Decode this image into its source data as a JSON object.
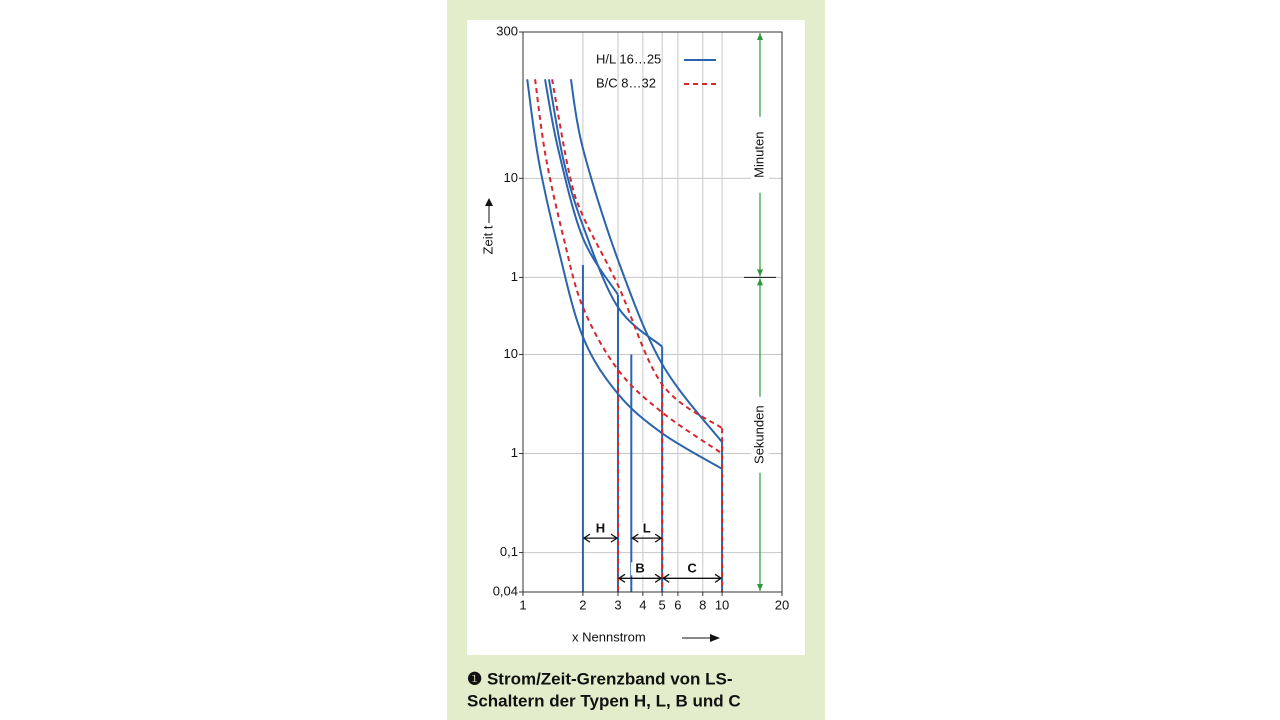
{
  "chart_data": {
    "type": "line",
    "x_label": "x Nennstrom",
    "y_label": "Zeit t",
    "xlim": [
      1,
      20
    ],
    "xticks": [
      1,
      2,
      3,
      4,
      5,
      6,
      8,
      10,
      20
    ],
    "ylim": [
      0.04,
      18000
    ],
    "yticks": [
      {
        "value": 18000,
        "label": "300"
      },
      {
        "value": 600,
        "label": "10"
      },
      {
        "value": 60,
        "label": "1"
      },
      10,
      1,
      {
        "value": 0.1,
        "label": "0,1"
      },
      {
        "value": 0.04,
        "label": "0,04"
      }
    ],
    "log_x": true,
    "log_y": true,
    "grid": true,
    "legend": "upper right",
    "series": [
      {
        "name": "H/L 16…25",
        "color": "#2a64ad",
        "dashed": false,
        "lines": [
          {
            "x": [
              1.74,
              2,
              3,
              5,
              10
            ],
            "y": [
              6000,
              1200,
              90,
              8,
              1.3
            ]
          },
          {
            "x": [
              1.35,
              1.6,
              2,
              3,
              5
            ],
            "y": [
              6000,
              900,
              200,
              30,
              12
            ]
          },
          {
            "x": [
              1.29,
              1.5,
              2,
              3
            ],
            "y": [
              6000,
              1200,
              150,
              40
            ]
          },
          {
            "x": [
              1.05,
              1.2,
              1.5,
              2,
              3,
              5,
              10
            ],
            "y": [
              6000,
              900,
              120,
              15,
              4,
              1.6,
              0.7
            ]
          },
          {
            "x": [
              2,
              2
            ],
            "y": [
              80,
              0.04
            ]
          },
          {
            "x": [
              3,
              3
            ],
            "y": [
              40,
              0.04
            ]
          },
          {
            "x": [
              3.5,
              3.5
            ],
            "y": [
              10,
              0.04
            ]
          },
          {
            "x": [
              5,
              5
            ],
            "y": [
              12,
              0.04
            ]
          },
          {
            "x": [
              10,
              10
            ],
            "y": [
              1.3,
              0.04
            ]
          }
        ]
      },
      {
        "name": "B/C 8…32",
        "color": "#d6262e",
        "dashed": true,
        "lines": [
          {
            "x": [
              1.15,
              1.3,
              1.6,
              2,
              3,
              5,
              10
            ],
            "y": [
              6000,
              1000,
              150,
              30,
              7,
              2.6,
              1.0
            ]
          },
          {
            "x": [
              1.4,
              1.7,
              2,
              3,
              5,
              10
            ],
            "y": [
              6000,
              700,
              250,
              50,
              5,
              1.8
            ]
          },
          {
            "x": [
              3,
              3
            ],
            "y": [
              7,
              0.04
            ]
          },
          {
            "x": [
              5,
              5
            ],
            "y": [
              5,
              0.04
            ]
          },
          {
            "x": [
              10,
              10
            ],
            "y": [
              1.8,
              0.04
            ]
          }
        ]
      }
    ],
    "bands": [
      {
        "label": "H",
        "x": [
          2,
          3
        ],
        "y": 0.14
      },
      {
        "label": "L",
        "x": [
          3.5,
          5
        ],
        "y": 0.14
      },
      {
        "label": "B",
        "x": [
          3,
          5
        ],
        "y": 0.055
      },
      {
        "label": "C",
        "x": [
          5,
          10
        ],
        "y": 0.055
      }
    ],
    "spans": [
      {
        "label": "Minuten",
        "y": [
          60,
          18000
        ]
      },
      {
        "label": "Sekunden",
        "y": [
          0.04,
          60
        ]
      }
    ],
    "caption": [
      "❶ Strom/Zeit-Grenzband von LS-",
      "Schaltern der Typen H, L, B und C"
    ]
  }
}
